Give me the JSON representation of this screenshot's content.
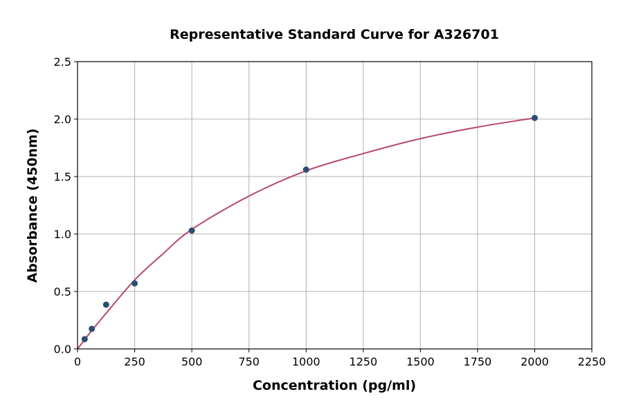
{
  "chart_data": {
    "type": "scatter",
    "title": "Representative Standard Curve for A326701",
    "xlabel": "Concentration (pg/ml)",
    "ylabel": "Absorbance (450nm)",
    "xlim": [
      0,
      2250
    ],
    "ylim": [
      0,
      2.5
    ],
    "xticks": [
      "0",
      "250",
      "500",
      "750",
      "1000",
      "1250",
      "1500",
      "1750",
      "2000",
      "2250"
    ],
    "yticks": [
      "0.0",
      "0.5",
      "1.0",
      "1.5",
      "2.0",
      "2.5"
    ],
    "grid": true,
    "series": [
      {
        "type": "scatter",
        "x": [
          31.25,
          62.5,
          125,
          250,
          500,
          1000,
          2000
        ],
        "y": [
          0.085,
          0.175,
          0.385,
          0.57,
          1.03,
          1.56,
          2.01
        ],
        "color": "#2d4e73"
      },
      {
        "type": "line",
        "x": [
          0,
          31.25,
          62.5,
          125,
          250,
          375,
          500,
          750,
          1000,
          1250,
          1500,
          1750,
          2000
        ],
        "y": [
          0,
          0.08,
          0.16,
          0.31,
          0.6,
          0.83,
          1.04,
          1.33,
          1.55,
          1.7,
          1.83,
          1.93,
          2.01
        ],
        "color": "#b5486b"
      }
    ]
  }
}
